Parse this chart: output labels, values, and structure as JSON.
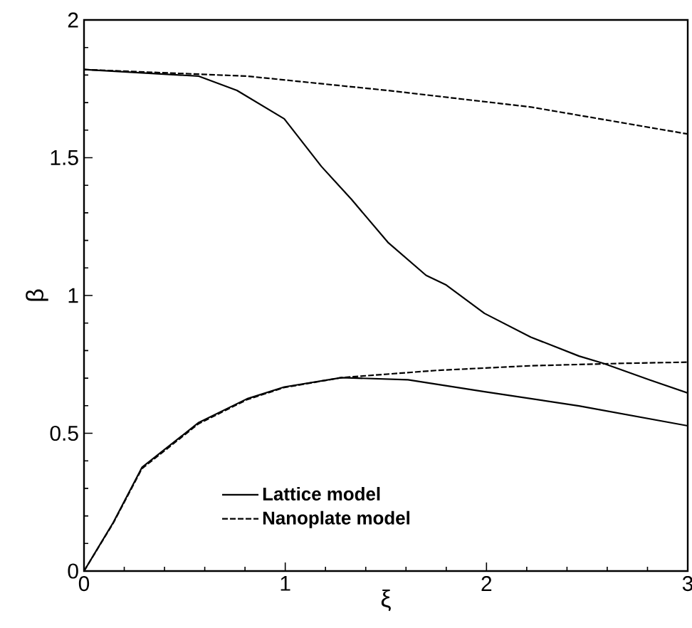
{
  "chart_data": {
    "type": "line",
    "xlabel": "ξ",
    "ylabel": "β",
    "xlim": [
      0,
      3
    ],
    "ylim": [
      0,
      2
    ],
    "xticks": [
      0,
      1,
      2,
      3
    ],
    "yticks": [
      0,
      0.5,
      1,
      1.5,
      2
    ],
    "legend": "bottom",
    "grid": false,
    "marker": "none",
    "series": [
      {
        "name": "Lattice model",
        "color": "#000000",
        "line_style": "solid",
        "x": [
          0,
          0.57,
          0.76,
          0.995,
          1.18,
          1.33,
          1.51,
          1.7,
          1.8,
          1.99,
          2.22,
          2.46,
          2.58,
          2.81,
          3
        ],
        "values": [
          1.82,
          1.796,
          1.744,
          1.641,
          1.468,
          1.348,
          1.193,
          1.073,
          1.038,
          0.935,
          0.849,
          0.78,
          0.754,
          0.694,
          0.646
        ]
      },
      {
        "name": "Nanoplate model",
        "color": "#000000",
        "line_style": "dashed",
        "x": [
          0,
          0.81,
          1.51,
          2.22,
          3
        ],
        "values": [
          1.82,
          1.796,
          1.744,
          1.684,
          1.586
        ]
      },
      {
        "color": "#000000",
        "line_style": "solid",
        "x": [
          0,
          0.146,
          0.288,
          0.57,
          0.81,
          0.995,
          1.28,
          1.61,
          1.99,
          2.46,
          3
        ],
        "values": [
          0,
          0.177,
          0.376,
          0.539,
          0.625,
          0.668,
          0.702,
          0.694,
          0.651,
          0.599,
          0.527
        ]
      },
      {
        "color": "#000000",
        "line_style": "dashed",
        "x": [
          0,
          0.146,
          0.288,
          0.57,
          0.81,
          0.995,
          1.28,
          1.75,
          2.22,
          2.69,
          3
        ],
        "values": [
          0,
          0.175,
          0.372,
          0.535,
          0.622,
          0.666,
          0.702,
          0.728,
          0.745,
          0.754,
          0.758
        ]
      }
    ]
  }
}
